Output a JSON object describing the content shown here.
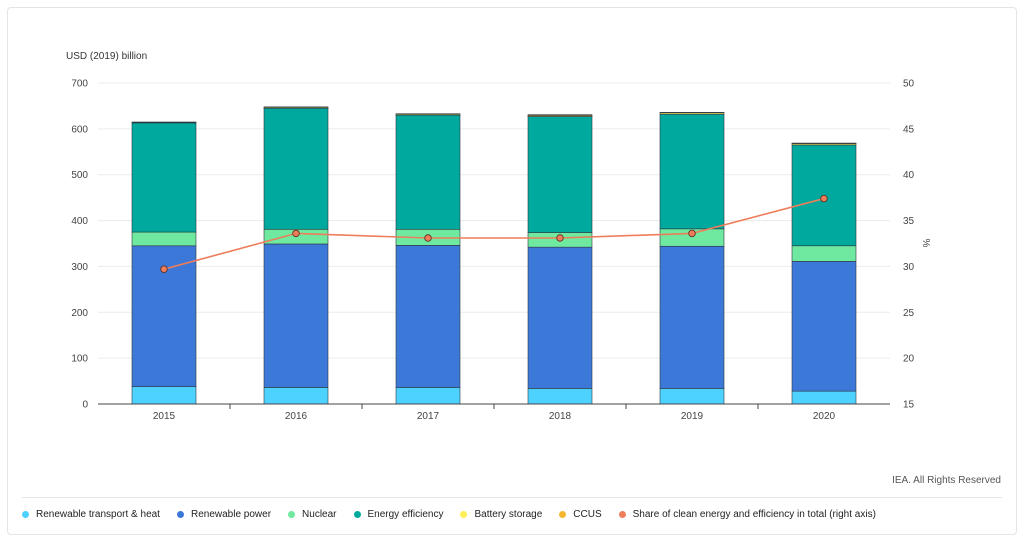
{
  "chart_data": {
    "type": "bar",
    "stacked": true,
    "categories": [
      "2015",
      "2016",
      "2017",
      "2018",
      "2019",
      "2020"
    ],
    "ylabel": "USD (2019) billion",
    "ylim": [
      0,
      700
    ],
    "yticks": [
      "0",
      "100",
      "200",
      "300",
      "400",
      "500",
      "600",
      "700"
    ],
    "y2label": "%",
    "y2lim": [
      15,
      50
    ],
    "y2ticks": [
      "15",
      "20",
      "25",
      "30",
      "35",
      "40",
      "45",
      "50"
    ],
    "grid": true,
    "legend_position": "bottom",
    "series": [
      {
        "name": "Renewable transport & heat",
        "color": "#4dd2ff",
        "values": [
          38,
          36,
          36,
          34,
          34,
          28
        ]
      },
      {
        "name": "Renewable power",
        "color": "#3c78d8",
        "values": [
          307,
          313,
          310,
          308,
          310,
          283
        ]
      },
      {
        "name": "Nuclear",
        "color": "#6fe8a0",
        "values": [
          30,
          32,
          35,
          32,
          38,
          34
        ]
      },
      {
        "name": "Energy efficiency",
        "color": "#00a99d",
        "values": [
          238,
          264,
          249,
          253,
          250,
          220
        ]
      },
      {
        "name": "Battery storage",
        "color": "#ffee55",
        "values": [
          1,
          2,
          2,
          2,
          3,
          3
        ]
      },
      {
        "name": "CCUS",
        "color": "#f5b731",
        "values": [
          1,
          1,
          1,
          2,
          1,
          1
        ]
      }
    ],
    "line_series": {
      "name": "Share of clean energy and efficiency in total (right axis)",
      "color": "#ee7d5b",
      "axis": "right",
      "values": [
        29.7,
        33.6,
        33.1,
        33.1,
        33.6,
        37.4
      ]
    }
  },
  "credit": "IEA. All Rights Reserved"
}
